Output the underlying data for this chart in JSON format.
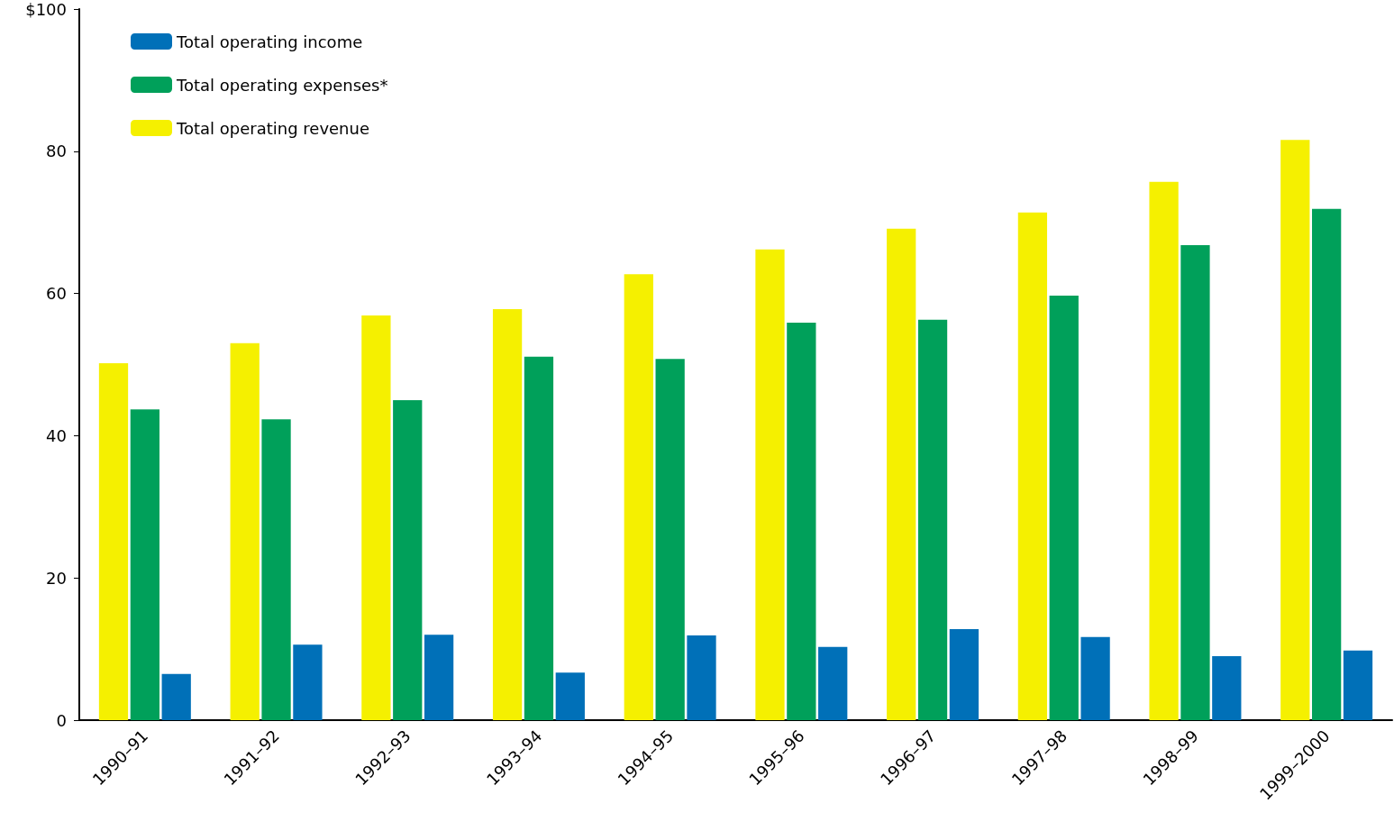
{
  "chart_data": {
    "type": "bar",
    "categories": [
      "1990–91",
      "1991–92",
      "1992–93",
      "1993–94",
      "1994–95",
      "1995–96",
      "1996–97",
      "1997–98",
      "1998–99",
      "1999–2000"
    ],
    "series": [
      {
        "name": "Total operating revenue",
        "color": "#f5f000",
        "values": [
          50.2,
          53.0,
          56.9,
          57.8,
          62.7,
          66.2,
          69.1,
          71.4,
          75.7,
          81.6
        ]
      },
      {
        "name": "Total operating expenses*",
        "color": "#00a05a",
        "values": [
          43.7,
          42.3,
          45.0,
          51.1,
          50.8,
          55.9,
          56.3,
          59.7,
          66.8,
          71.9
        ]
      },
      {
        "name": "Total operating income",
        "color": "#0070b8",
        "values": [
          6.5,
          10.6,
          12.0,
          6.7,
          11.9,
          10.3,
          12.8,
          11.7,
          9.0,
          9.8
        ]
      }
    ],
    "ylim": [
      0,
      100
    ],
    "yticks": [
      0,
      20,
      40,
      60,
      80,
      {
        "value": 100,
        "label": "$100"
      }
    ],
    "grid": false,
    "legend": "top left"
  }
}
